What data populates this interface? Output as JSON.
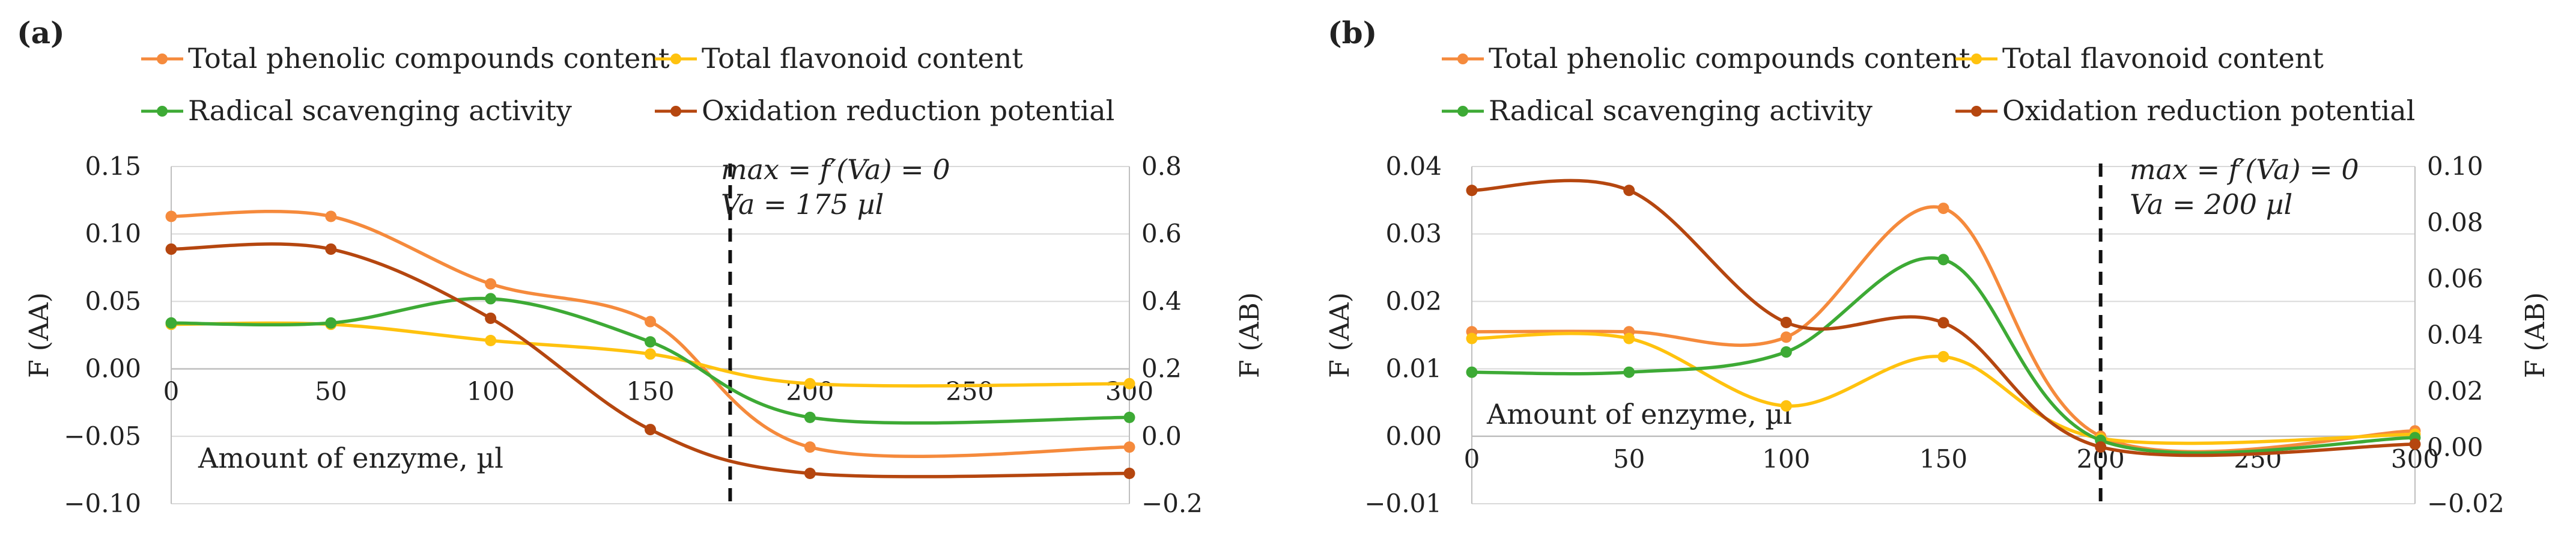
{
  "chart_data": [
    {
      "type": "line",
      "panel_label": "(a)",
      "legend": [
        "Total phenolic compounds content",
        "Total flavonoid content",
        "Radical scavenging activity",
        "Oxidation reduction potential"
      ],
      "x": [
        0,
        50,
        100,
        150,
        200,
        300
      ],
      "x_ticks": [
        "0",
        "50",
        "100",
        "150",
        "200",
        "250",
        "300"
      ],
      "xlim": [
        0,
        300
      ],
      "xlabel": "Amount of enzyme, µl",
      "ylabel_left": "F (AA)",
      "ylabel_right": "F (AB)",
      "ylim_left": [
        -0.1,
        0.15
      ],
      "ylim_right": [
        -0.2,
        0.8
      ],
      "yticks_left": [
        "−0.10",
        "−0.05",
        "0.00",
        "0.05",
        "0.10",
        "0.15"
      ],
      "yticks_right": [
        "−0.2",
        "0.0",
        "0.2",
        "0.4",
        "0.6",
        "0.8"
      ],
      "annotation_line1": "max = f′(Va) = 0",
      "annotation_line2": "Va = 175 µl",
      "vline_x": 175,
      "series": [
        {
          "name": "Total phenolic compounds content",
          "axis": "left",
          "color": "#F58A3C",
          "values": [
            0.113,
            0.113,
            0.063,
            0.035,
            -0.058,
            -0.058
          ]
        },
        {
          "name": "Total flavonoid content",
          "axis": "left",
          "color": "#FFC20E",
          "values": [
            0.033,
            0.033,
            0.021,
            0.011,
            -0.011,
            -0.011
          ]
        },
        {
          "name": "Radical scavenging activity",
          "axis": "left",
          "color": "#3DAA35",
          "values": [
            0.034,
            0.034,
            0.052,
            0.02,
            -0.036,
            -0.036
          ]
        },
        {
          "name": "Oxidation reduction potential",
          "axis": "right",
          "color": "#B5460F",
          "values": [
            0.555,
            0.555,
            0.35,
            0.02,
            -0.11,
            -0.11
          ]
        }
      ]
    },
    {
      "type": "line",
      "panel_label": "(b)",
      "legend": [
        "Total phenolic compounds content",
        "Total flavonoid content",
        "Radical scavenging activity",
        "Oxidation reduction potential"
      ],
      "x": [
        0,
        50,
        100,
        150,
        200,
        300
      ],
      "x_ticks": [
        "0",
        "50",
        "100",
        "150",
        "200",
        "250",
        "300"
      ],
      "xlim": [
        0,
        300
      ],
      "xlabel": "Amount of enzyme, µl",
      "ylabel_left": "F (AA)",
      "ylabel_right": "F (AB)",
      "ylim_left": [
        -0.01,
        0.04
      ],
      "ylim_right": [
        -0.02,
        0.1
      ],
      "yticks_left": [
        "−0.01",
        "0.00",
        "0.01",
        "0.02",
        "0.03",
        "0.04"
      ],
      "yticks_right": [
        "−0.02",
        "0.00",
        "0.02",
        "0.04",
        "0.06",
        "0.08",
        "0.10"
      ],
      "annotation_line1": "max = f′(Va) = 0",
      "annotation_line2": "Va = 200 µl",
      "vline_x": 200,
      "series": [
        {
          "name": "Total phenolic compounds content",
          "axis": "left",
          "color": "#F58A3C",
          "values": [
            0.0155,
            0.0155,
            0.0147,
            0.0338,
            0.0,
            0.0008
          ]
        },
        {
          "name": "Total flavonoid content",
          "axis": "left",
          "color": "#FFC20E",
          "values": [
            0.0145,
            0.0145,
            0.0045,
            0.0118,
            -0.0003,
            0.0003
          ]
        },
        {
          "name": "Radical scavenging activity",
          "axis": "left",
          "color": "#3DAA35",
          "values": [
            0.0095,
            0.0095,
            0.0125,
            0.0262,
            -0.0006,
            -0.0002
          ]
        },
        {
          "name": "Oxidation reduction potential",
          "axis": "right",
          "color": "#B5460F",
          "values": [
            0.0915,
            0.0915,
            0.0445,
            0.0444,
            0.0002,
            0.0012
          ]
        }
      ]
    }
  ]
}
